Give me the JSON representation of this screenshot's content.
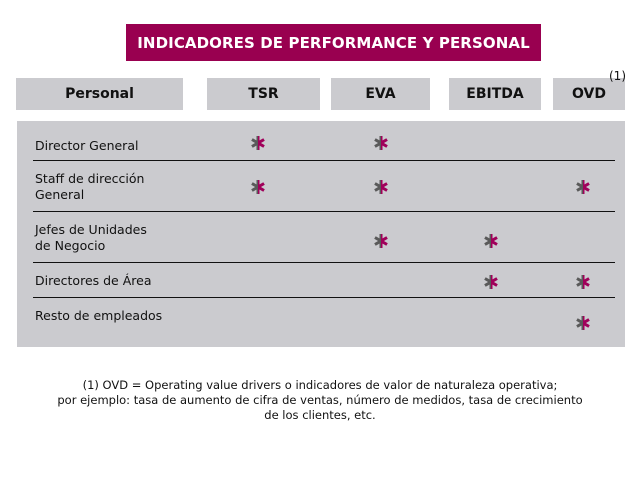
{
  "title": "INDICADORES DE PERFORMANCE Y PERSONAL",
  "colors": {
    "brand": "#990050",
    "panel": "#cbcbcf",
    "mark_left": "#5a5a5a",
    "mark_right": "#a0005a"
  },
  "headers": {
    "personal": "Personal",
    "tsr": "TSR",
    "eva": "EVA",
    "ebitda": "EBITDA",
    "ovd": "OVD",
    "ovd_note": "(1)"
  },
  "rows": [
    {
      "label": "Director General",
      "tsr": true,
      "eva": true,
      "ebitda": false,
      "ovd": false
    },
    {
      "label": "Staff de dirección\nGeneral",
      "tsr": true,
      "eva": true,
      "ebitda": false,
      "ovd": true
    },
    {
      "label": "Jefes de Unidades\nde Negocio",
      "tsr": false,
      "eva": true,
      "ebitda": true,
      "ovd": false
    },
    {
      "label": "Directores de Área",
      "tsr": false,
      "eva": false,
      "ebitda": true,
      "ovd": true
    },
    {
      "label": "Resto de empleados",
      "tsr": false,
      "eva": false,
      "ebitda": false,
      "ovd": true
    }
  ],
  "mark_icon": "asterisk-icon",
  "footnote": {
    "line1": "(1) OVD = Operating value drivers o indicadores de valor de naturaleza operativa;",
    "line2": "por ejemplo: tasa de aumento de cifra de ventas, número de medidos, tasa de crecimiento",
    "line3": "de los clientes, etc."
  }
}
